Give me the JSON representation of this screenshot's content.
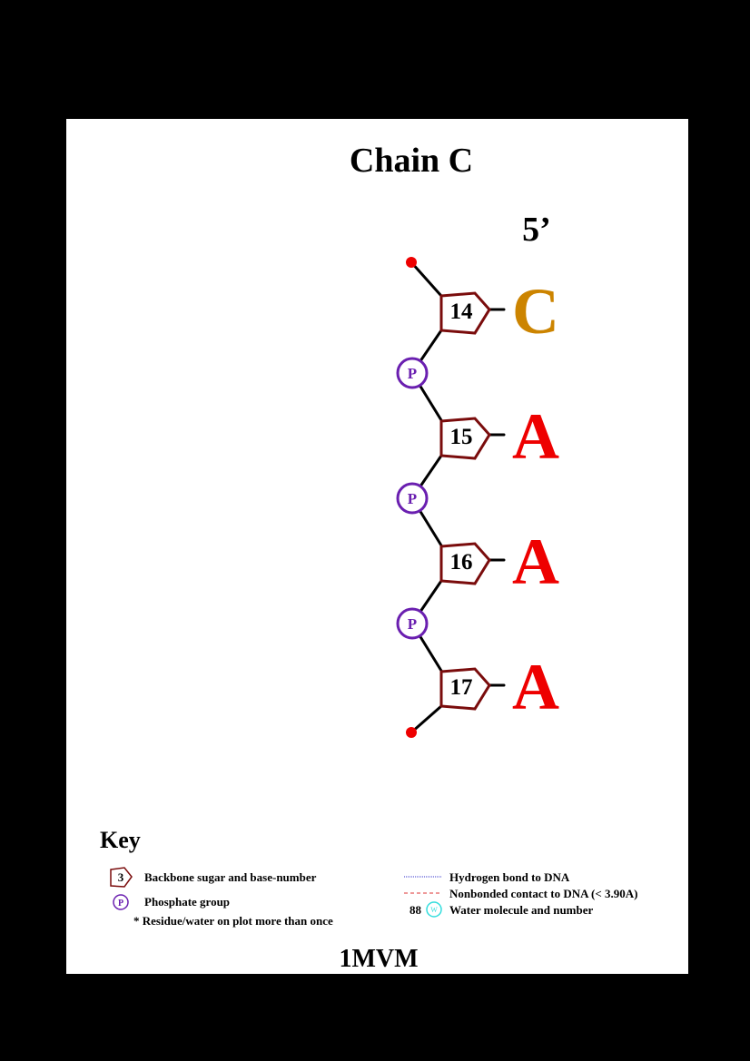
{
  "title": "Chain C",
  "end_label": "5’",
  "residues": [
    {
      "number": "14",
      "base": "C",
      "color": "#cc8400"
    },
    {
      "number": "15",
      "base": "A",
      "color": "#ee0000"
    },
    {
      "number": "16",
      "base": "A",
      "color": "#ee0000"
    },
    {
      "number": "17",
      "base": "A",
      "color": "#ee0000"
    }
  ],
  "phosphate_label": "P",
  "colors": {
    "sugar": "#7a0c0c",
    "phosphate": "#6a1fb0",
    "terminal": "#ee0000",
    "bond": "#000000",
    "hbond": "#3333cc",
    "nonbonded": "#dd3333",
    "water": "#33dddd"
  },
  "key": {
    "title": "Key",
    "sugar_number": "3",
    "sugar_text": "Backbone sugar and base-number",
    "phosphate_symbol": "P",
    "phosphate_text": "Phosphate group",
    "duplicate_text": "* Residue/water on plot more than once",
    "hbond_text": "Hydrogen bond to DNA",
    "nonbonded_text": "Nonbonded contact to DNA (< 3.90A)",
    "water_number": "88",
    "water_symbol": "W",
    "water_text": "Water molecule and number"
  },
  "pdb_id": "1MVM"
}
